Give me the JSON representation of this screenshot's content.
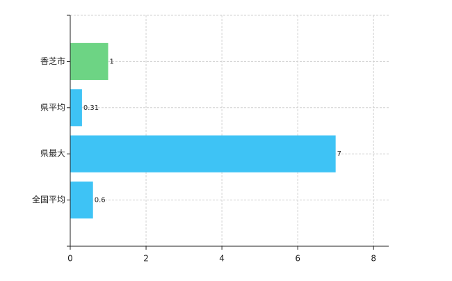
{
  "chart_data": {
    "type": "hbar",
    "categories": [
      "香芝市",
      "県平均",
      "県最大",
      "全国平均"
    ],
    "values": [
      1,
      0.31,
      7,
      0.6
    ],
    "colors": [
      "#6dd484",
      "#3ec3f5",
      "#3ec3f5",
      "#3ec3f5"
    ],
    "xlim": [
      0,
      8.4
    ],
    "xticks": [
      0,
      2,
      4,
      6,
      8
    ],
    "grid": true
  }
}
